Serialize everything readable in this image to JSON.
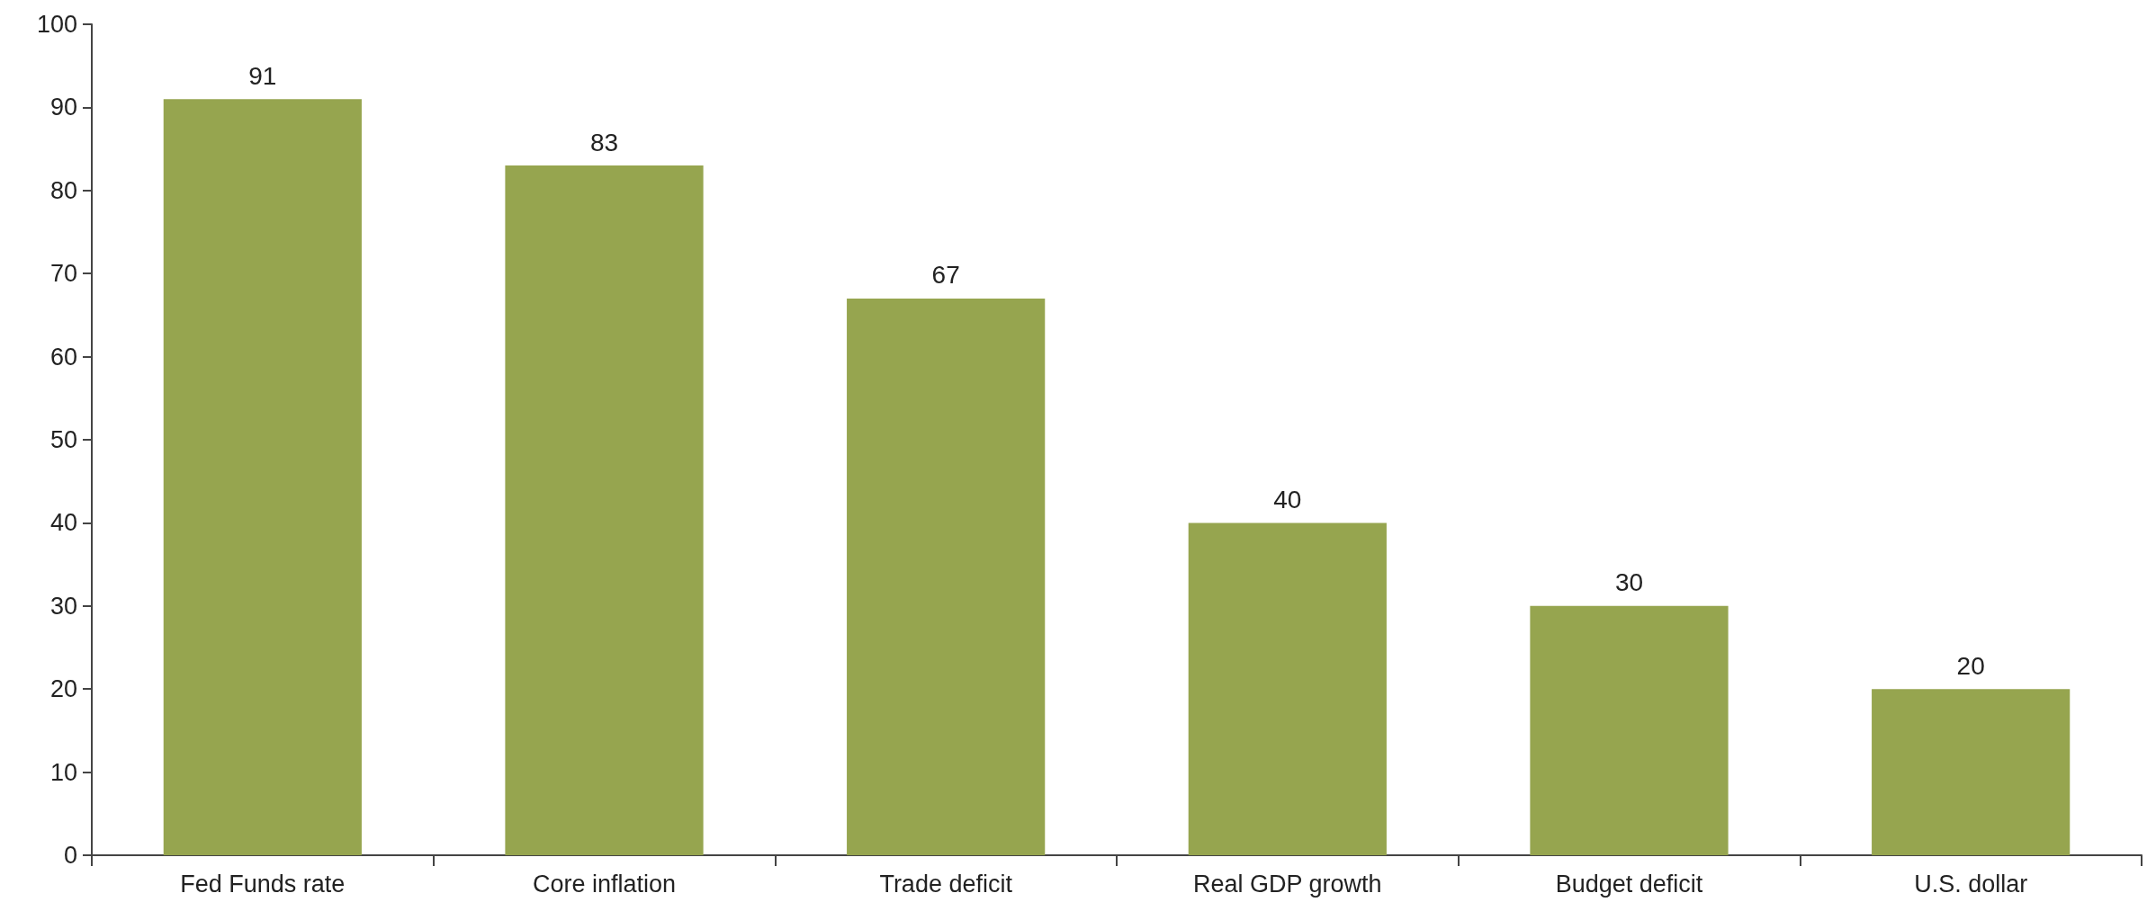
{
  "chart_data": {
    "type": "bar",
    "categories": [
      "Fed Funds rate",
      "Core inflation",
      "Trade deficit",
      "Real GDP growth",
      "Budget deficit",
      "U.S. dollar"
    ],
    "values": [
      91,
      83,
      67,
      40,
      30,
      20
    ],
    "color": "#96a54f",
    "ylim": [
      0,
      100
    ],
    "yticks": [
      0,
      10,
      20,
      30,
      40,
      50,
      60,
      70,
      80,
      90,
      100
    ],
    "grid": false,
    "data_labels": true
  }
}
